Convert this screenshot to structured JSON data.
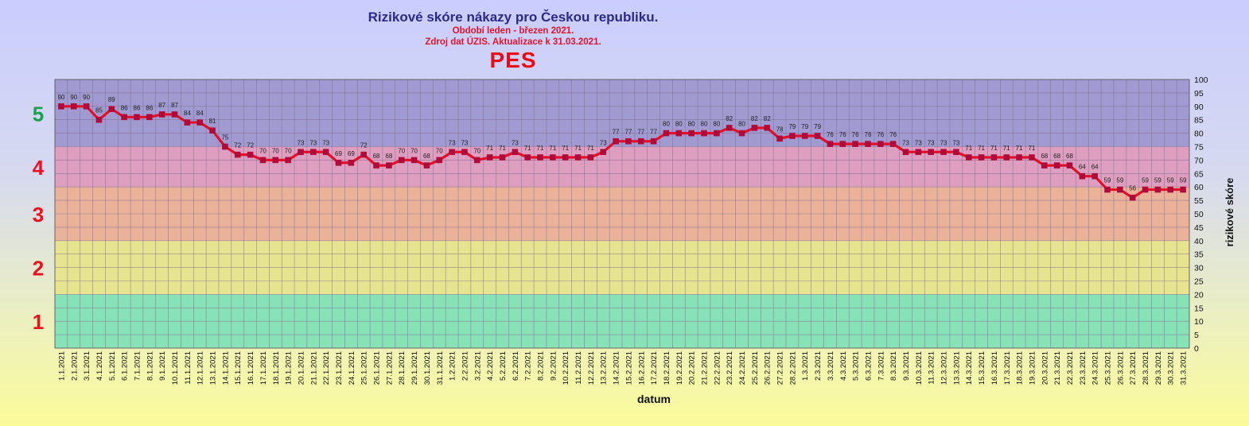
{
  "header": {
    "title": "Rizikové skóre nákazy pro Českou republiku.",
    "period": "Období leden - březen 2021.",
    "source": "Zdroj dat  ÚZIS. Aktualizace k 31.03.2021.",
    "system": "PES"
  },
  "levels": [
    {
      "label": "5",
      "from": 75,
      "to": 100,
      "color": "#a09ad0",
      "label_color": "#1aa04a"
    },
    {
      "label": "4",
      "from": 60,
      "to": 75,
      "color": "#de9ec0",
      "label_color": "#ee1020"
    },
    {
      "label": "3",
      "from": 40,
      "to": 60,
      "color": "#ebb29a",
      "label_color": "#ee1020"
    },
    {
      "label": "2",
      "from": 20,
      "to": 40,
      "color": "#e6e48e",
      "label_color": "#ee1020"
    },
    {
      "label": "1",
      "from": 0,
      "to": 20,
      "color": "#88e2b8",
      "label_color": "#ee1020"
    }
  ],
  "chart_data": {
    "type": "line",
    "title": "Rizikové skóre nákazy pro Českou republiku.",
    "xlabel": "datum",
    "ylabel": "rizikové skóre",
    "ylim": [
      0,
      100
    ],
    "y_ticks": [
      0,
      5,
      10,
      15,
      20,
      25,
      30,
      35,
      40,
      45,
      50,
      55,
      60,
      65,
      70,
      75,
      80,
      85,
      90,
      95,
      100
    ],
    "grid": true,
    "line_color": "#e0102a",
    "marker_color": "#b00a3a",
    "categories": [
      "1.1.2021",
      "2.1.2021",
      "3.1.2021",
      "4.1.2021",
      "5.1.2021",
      "6.1.2021",
      "7.1.2021",
      "8.1.2021",
      "9.1.2021",
      "10.1.2021",
      "11.1.2021",
      "12.1.2021",
      "13.1.2021",
      "14.1.2021",
      "15.1.2021",
      "16.1.2021",
      "17.1.2021",
      "18.1.2021",
      "19.1.2021",
      "20.1.2021",
      "21.1.2021",
      "22.1.2021",
      "23.1.2021",
      "24.1.2021",
      "25.1.2021",
      "26.1.2021",
      "27.1.2021",
      "28.1.2021",
      "29.1.2021",
      "30.1.2021",
      "31.1.2021",
      "1.2.2021",
      "2.2.2021",
      "3.2.2021",
      "4.2.2021",
      "5.2.2021",
      "6.2.2021",
      "7.2.2021",
      "8.2.2021",
      "9.2.2021",
      "10.2.2021",
      "11.2.2021",
      "12.2.2021",
      "13.2.2021",
      "14.2.2021",
      "15.2.2021",
      "16.2.2021",
      "17.2.2021",
      "18.2.2021",
      "19.2.2021",
      "20.2.2021",
      "21.2.2021",
      "22.2.2021",
      "23.2.2021",
      "24.2.2021",
      "25.2.2021",
      "26.2.2021",
      "27.2.2021",
      "28.2.2021",
      "1.3.2021",
      "2.3.2021",
      "3.3.2021",
      "4.3.2021",
      "5.3.2021",
      "6.3.2021",
      "7.3.2021",
      "8.3.2021",
      "9.3.2021",
      "10.3.2021",
      "11.3.2021",
      "12.3.2021",
      "13.3.2021",
      "14.3.2021",
      "15.3.2021",
      "16.3.2021",
      "17.3.2021",
      "18.3.2021",
      "19.3.2021",
      "20.3.2021",
      "21.3.2021",
      "22.3.2021",
      "23.3.2021",
      "24.3.2021",
      "25.3.2021",
      "26.3.2021",
      "27.3.2021",
      "28.3.2021",
      "29.3.2021",
      "30.3.2021",
      "31.3.2021"
    ],
    "values": [
      90,
      90,
      90,
      85,
      89,
      86,
      86,
      86,
      87,
      87,
      84,
      84,
      81,
      75,
      72,
      72,
      70,
      70,
      70,
      73,
      73,
      73,
      69,
      69,
      72,
      68,
      68,
      70,
      70,
      68,
      70,
      73,
      73,
      70,
      71,
      71,
      73,
      71,
      71,
      71,
      71,
      71,
      71,
      73,
      77,
      77,
      77,
      77,
      80,
      80,
      80,
      80,
      80,
      82,
      80,
      82,
      82,
      78,
      79,
      79,
      79,
      76,
      76,
      76,
      76,
      76,
      76,
      73,
      73,
      73,
      73,
      73,
      71,
      71,
      71,
      71,
      71,
      71,
      68,
      68,
      68,
      64,
      64,
      59,
      59,
      56,
      59,
      59,
      59,
      59
    ]
  }
}
